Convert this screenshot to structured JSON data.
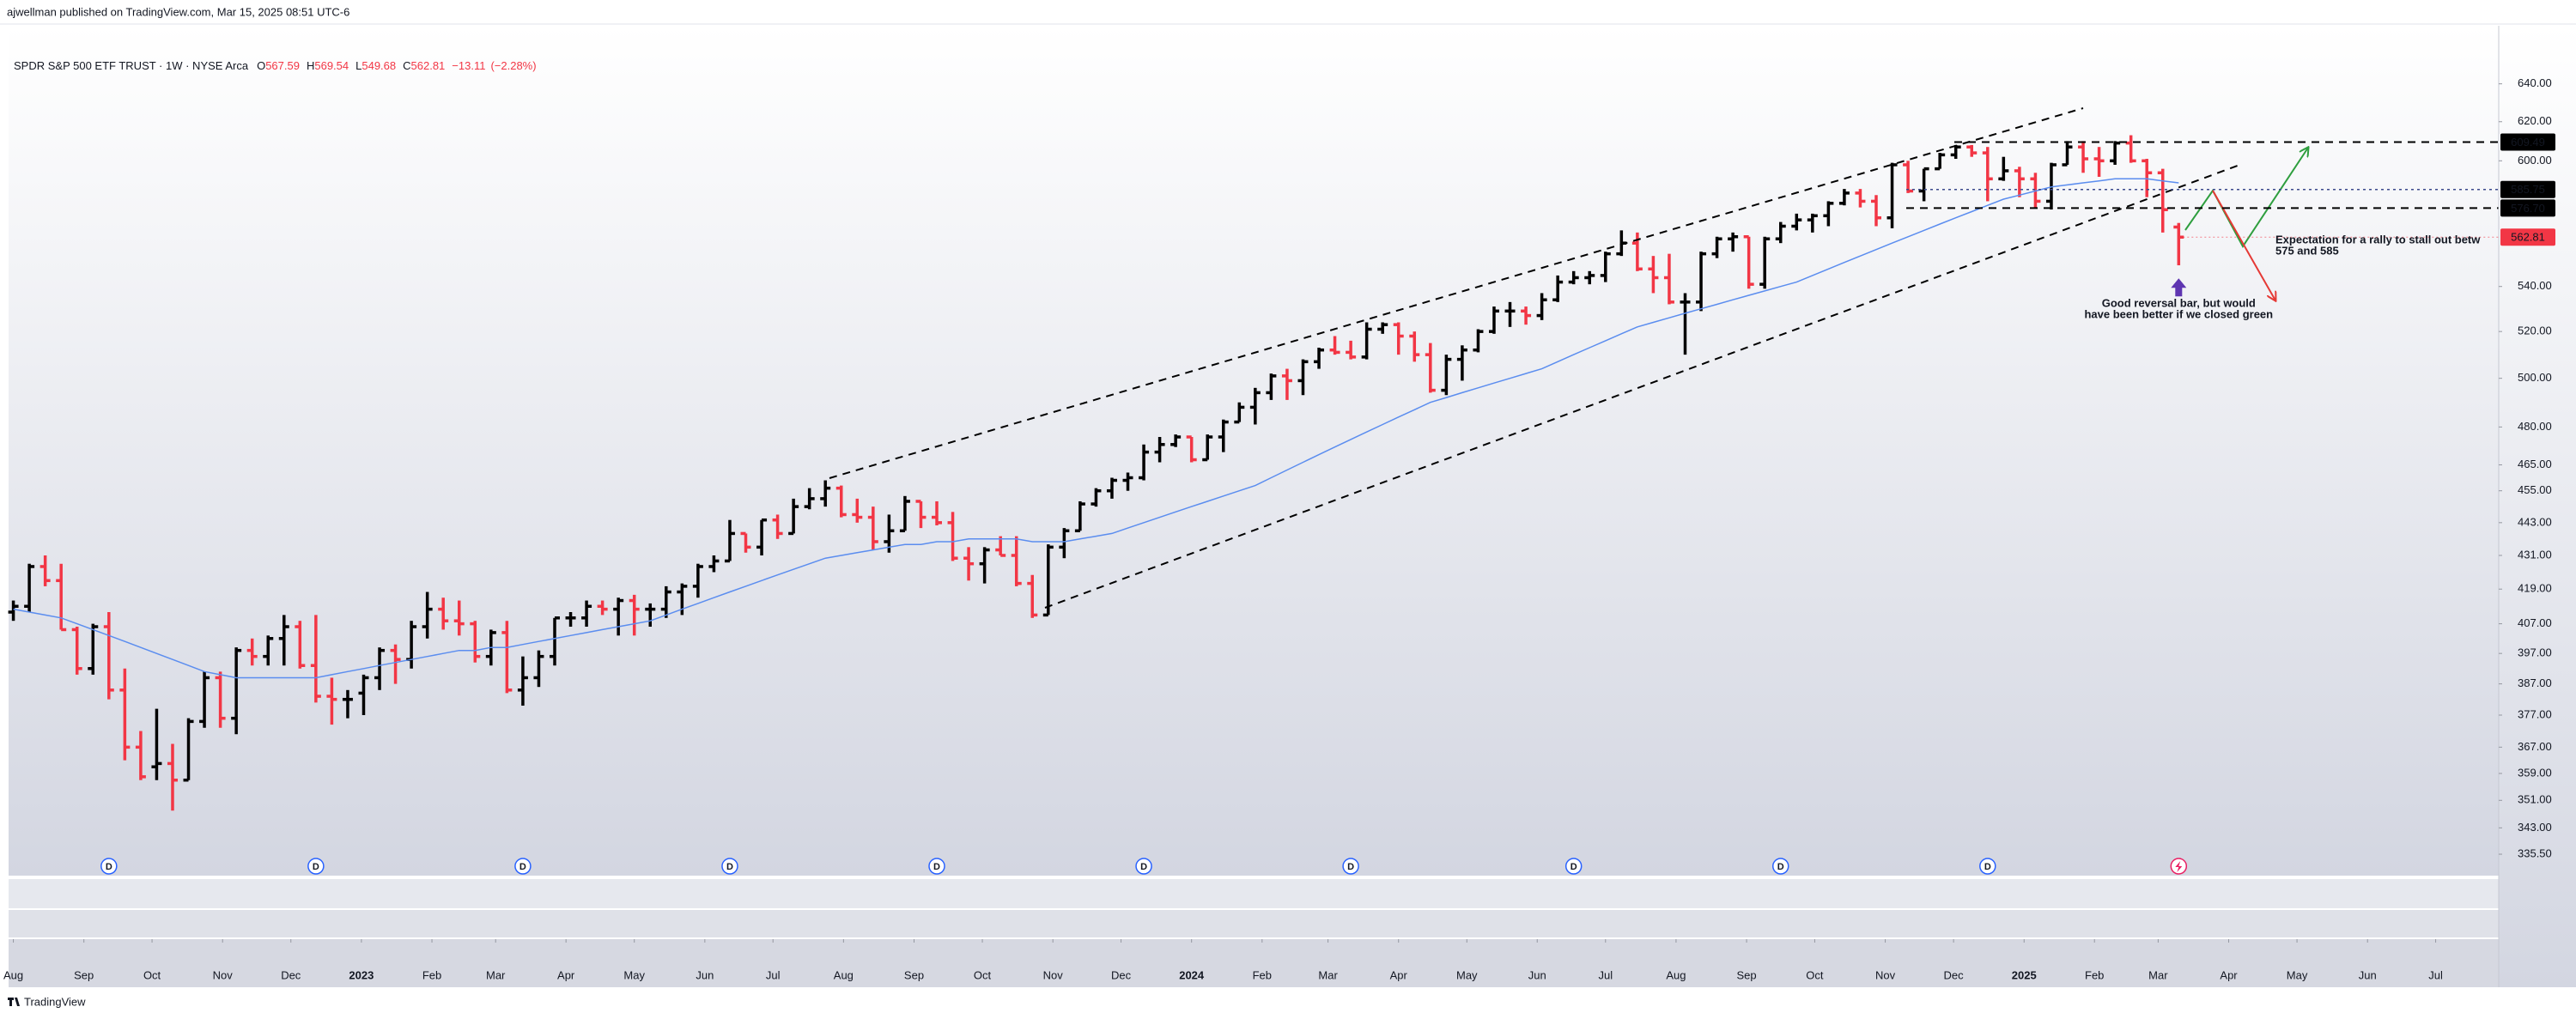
{
  "header": {
    "text": "ajwellman published on TradingView.com, Mar 15, 2025 08:51 UTC-6"
  },
  "footer": {
    "brand": "TradingView"
  },
  "chart_data": {
    "type": "ohlc",
    "title": "SPDR S&P 500 ETF TRUST · 1W · NYSE Arca",
    "legend": {
      "open_prefix": "O",
      "high_prefix": "H",
      "low_prefix": "L",
      "close_prefix": "C",
      "change": "−13.11",
      "change_pct": "(−2.28%)"
    },
    "open": [
      411,
      413,
      427,
      422,
      405,
      392,
      406,
      385,
      367,
      361,
      362,
      357,
      375,
      389,
      376,
      398,
      396,
      402,
      406,
      393,
      383,
      382,
      384,
      389,
      398,
      395,
      406,
      412,
      408,
      407,
      396,
      404,
      385,
      389,
      396,
      409,
      409,
      413,
      412,
      415,
      412,
      412,
      418,
      420,
      427,
      429,
      439,
      434,
      444,
      439,
      449,
      452,
      456,
      446,
      445,
      436,
      440,
      451,
      445,
      443,
      430,
      428,
      433,
      431,
      421,
      410,
      434,
      440,
      450,
      455,
      459,
      460,
      470,
      473,
      476,
      467,
      476,
      482,
      488,
      494,
      501,
      499,
      507,
      512,
      511,
      509,
      521,
      523,
      518,
      510,
      495,
      508,
      512,
      520,
      529,
      529,
      527,
      534,
      542,
      544,
      545,
      555,
      560,
      548,
      544,
      533,
      533,
      555,
      562,
      563,
      541,
      562,
      568,
      571,
      573,
      579,
      584,
      580,
      572,
      598,
      585,
      596,
      603,
      607,
      604,
      591,
      595,
      591,
      580,
      598,
      607,
      601,
      600,
      609,
      600,
      594,
      567.59
    ],
    "high": [
      415,
      428,
      431,
      428,
      406,
      407,
      411,
      392,
      372,
      379,
      368,
      376,
      391,
      391,
      399,
      402,
      403,
      410,
      408,
      410,
      389,
      385,
      390,
      399,
      400,
      408,
      418,
      416,
      415,
      408,
      405,
      408,
      396,
      398,
      409,
      411,
      415,
      415,
      416,
      417,
      414,
      420,
      421,
      428,
      431,
      444,
      439,
      444,
      446,
      452,
      456,
      459,
      457,
      452,
      449,
      446,
      453,
      451,
      451,
      447,
      434,
      434,
      438,
      438,
      424,
      435,
      441,
      451,
      456,
      460,
      462,
      473,
      476,
      477,
      476,
      477,
      483,
      490,
      496,
      502,
      504,
      508,
      513,
      518,
      516,
      524,
      524,
      524,
      520,
      515,
      510,
      514,
      521,
      531,
      533,
      531,
      537,
      545,
      547,
      547,
      556,
      566,
      565,
      554,
      555,
      537,
      556,
      563,
      565,
      563,
      563,
      570,
      574,
      574,
      580,
      586,
      586,
      583,
      599,
      600,
      596,
      604,
      608,
      608,
      607,
      602,
      597,
      594,
      599,
      610,
      610,
      607,
      610,
      613,
      601,
      596,
      569.54
    ],
    "low": [
      408,
      411,
      420,
      405,
      390,
      390,
      382,
      363,
      357,
      357,
      348,
      357,
      373,
      373,
      371,
      393,
      393,
      393,
      392,
      381,
      374,
      376,
      377,
      385,
      387,
      392,
      402,
      405,
      403,
      394,
      393,
      384,
      380,
      386,
      393,
      406,
      406,
      410,
      403,
      403,
      406,
      409,
      410,
      416,
      425,
      429,
      432,
      431,
      437,
      439,
      448,
      449,
      445,
      443,
      433,
      432,
      440,
      441,
      442,
      429,
      422,
      421,
      431,
      420,
      409,
      410,
      430,
      440,
      449,
      452,
      455,
      459,
      466,
      472,
      466,
      467,
      470,
      482,
      481,
      491,
      491,
      493,
      504,
      510,
      508,
      508,
      519,
      510,
      507,
      494,
      493,
      499,
      511,
      519,
      522,
      523,
      525,
      533,
      541,
      541,
      542,
      554,
      547,
      537,
      532,
      510,
      529,
      553,
      556,
      539,
      539,
      560,
      566,
      565,
      568,
      578,
      577,
      568,
      567,
      584,
      580,
      596,
      601,
      602,
      580,
      590,
      582,
      577,
      576,
      598,
      594,
      592,
      598,
      599,
      582,
      565,
      549.68
    ],
    "close": [
      413,
      427,
      422,
      405,
      392,
      406,
      385,
      367,
      358,
      362,
      357,
      375,
      389,
      376,
      398,
      396,
      402,
      406,
      393,
      383,
      382,
      382,
      389,
      398,
      395,
      406,
      412,
      408,
      407,
      396,
      404,
      385,
      389,
      396,
      409,
      409,
      413,
      412,
      415,
      412,
      412,
      418,
      420,
      427,
      429,
      439,
      434,
      444,
      439,
      449,
      452,
      456,
      446,
      445,
      436,
      440,
      451,
      445,
      443,
      430,
      428,
      433,
      431,
      421,
      410,
      434,
      440,
      450,
      455,
      459,
      460,
      470,
      473,
      476,
      467,
      476,
      482,
      488,
      494,
      501,
      499,
      507,
      512,
      511,
      509,
      521,
      523,
      518,
      510,
      495,
      508,
      512,
      520,
      529,
      529,
      527,
      534,
      542,
      544,
      545,
      555,
      560,
      548,
      544,
      533,
      533,
      555,
      562,
      563,
      541,
      562,
      568,
      571,
      573,
      579,
      584,
      580,
      572,
      598,
      585,
      596,
      603,
      607,
      604,
      591,
      595,
      591,
      580,
      598,
      607,
      601,
      600,
      609,
      600,
      594,
      575.92,
      562.81
    ],
    "up_color": "#000000",
    "down_color": "#f23645",
    "moving_average": {
      "color": "#5b8def",
      "values": [
        412,
        411,
        410,
        409,
        407,
        405,
        403,
        401,
        399,
        397,
        395,
        393,
        391,
        390,
        389,
        389,
        389,
        389,
        389,
        389,
        390,
        391,
        392,
        393,
        394,
        395,
        396,
        397,
        398,
        398,
        399,
        399,
        400,
        401,
        402,
        403,
        404,
        405,
        406,
        407,
        408,
        410,
        412,
        414,
        416,
        418,
        420,
        422,
        424,
        426,
        428,
        430,
        431,
        432,
        433,
        434,
        435,
        435,
        436,
        436,
        437,
        437,
        437,
        437,
        436,
        436,
        436,
        437,
        438,
        439,
        441,
        443,
        445,
        447,
        449,
        451,
        453,
        455,
        457,
        460,
        463,
        466,
        469,
        472,
        475,
        478,
        481,
        484,
        487,
        490,
        492,
        494,
        496,
        498,
        500,
        502,
        504,
        507,
        510,
        513,
        516,
        519,
        522,
        524,
        526,
        528,
        530,
        532,
        534,
        536,
        538,
        540,
        542,
        545,
        548,
        551,
        554,
        557,
        560,
        563,
        566,
        569,
        572,
        575,
        578,
        581,
        583,
        585,
        587,
        588,
        589,
        590,
        591,
        591,
        591,
        590,
        589
      ]
    },
    "log_scale": true,
    "ylim": [
      330,
      659
    ],
    "yticks": [
      {
        "value": 640,
        "label": "640.00"
      },
      {
        "value": 620,
        "label": "620.00"
      },
      {
        "value": 600,
        "label": "600.00"
      },
      {
        "value": 540,
        "label": "540.00"
      },
      {
        "value": 520,
        "label": "520.00"
      },
      {
        "value": 500,
        "label": "500.00"
      },
      {
        "value": 480,
        "label": "480.00"
      },
      {
        "value": 465,
        "label": "465.00"
      },
      {
        "value": 455,
        "label": "455.00"
      },
      {
        "value": 443,
        "label": "443.00"
      },
      {
        "value": 431,
        "label": "431.00"
      },
      {
        "value": 419,
        "label": "419.00"
      },
      {
        "value": 407,
        "label": "407.00"
      },
      {
        "value": 397,
        "label": "397.00"
      },
      {
        "value": 387,
        "label": "387.00"
      },
      {
        "value": 377,
        "label": "377.00"
      },
      {
        "value": 367,
        "label": "367.00"
      },
      {
        "value": 359,
        "label": "359.00"
      },
      {
        "value": 351,
        "label": "351.00"
      },
      {
        "value": 343,
        "label": "343.00"
      },
      {
        "value": 335.5,
        "label": "335.50"
      }
    ],
    "xlim": [
      -0.3,
      156.1
    ],
    "xticks": [
      {
        "value": 0,
        "label": "Aug"
      },
      {
        "value": 4.43,
        "label": "Sep"
      },
      {
        "value": 8.71,
        "label": "Oct"
      },
      {
        "value": 13.14,
        "label": "Nov"
      },
      {
        "value": 17.43,
        "label": "Dec"
      },
      {
        "value": 21.86,
        "label": "2023"
      },
      {
        "value": 26.29,
        "label": "Feb"
      },
      {
        "value": 30.29,
        "label": "Mar"
      },
      {
        "value": 34.71,
        "label": "Apr"
      },
      {
        "value": 39,
        "label": "May"
      },
      {
        "value": 43.43,
        "label": "Jun"
      },
      {
        "value": 47.71,
        "label": "Jul"
      },
      {
        "value": 52.14,
        "label": "Aug"
      },
      {
        "value": 56.57,
        "label": "Sep"
      },
      {
        "value": 60.86,
        "label": "Oct"
      },
      {
        "value": 65.29,
        "label": "Nov"
      },
      {
        "value": 69.57,
        "label": "Dec"
      },
      {
        "value": 74,
        "label": "2024"
      },
      {
        "value": 78.43,
        "label": "Feb"
      },
      {
        "value": 82.57,
        "label": "Mar"
      },
      {
        "value": 87,
        "label": "Apr"
      },
      {
        "value": 91.29,
        "label": "May"
      },
      {
        "value": 95.71,
        "label": "Jun"
      },
      {
        "value": 100,
        "label": "Jul"
      },
      {
        "value": 104.43,
        "label": "Aug"
      },
      {
        "value": 108.86,
        "label": "Sep"
      },
      {
        "value": 113.14,
        "label": "Oct"
      },
      {
        "value": 117.57,
        "label": "Nov"
      },
      {
        "value": 121.86,
        "label": "Dec"
      },
      {
        "value": 126.29,
        "label": "2025"
      },
      {
        "value": 130.71,
        "label": "Feb"
      },
      {
        "value": 134.71,
        "label": "Mar"
      },
      {
        "value": 139.14,
        "label": "Apr"
      },
      {
        "value": 143.43,
        "label": "May"
      },
      {
        "value": 147.86,
        "label": "Jun"
      },
      {
        "value": 152.14,
        "label": "Jul"
      }
    ],
    "levels": [
      {
        "value": 609.49,
        "label": "609.49",
        "style": "dashed"
      },
      {
        "value": 585.75,
        "label": "585.75",
        "style": "dotted"
      },
      {
        "value": 576.7,
        "label": "576.70",
        "style": "dashed"
      }
    ],
    "last_price_color": "#f23645",
    "annotations": [
      {
        "lines": [
          "Good reversal bar, but would",
          "have been better if we closed green"
        ]
      },
      {
        "lines": [
          "Expectation for a rally to stall out betw",
          "575 and 585"
        ]
      }
    ],
    "dividends": {
      "label": "D",
      "weeks": [
        6,
        19,
        32,
        45,
        58,
        71,
        84,
        98,
        111,
        124
      ]
    }
  }
}
